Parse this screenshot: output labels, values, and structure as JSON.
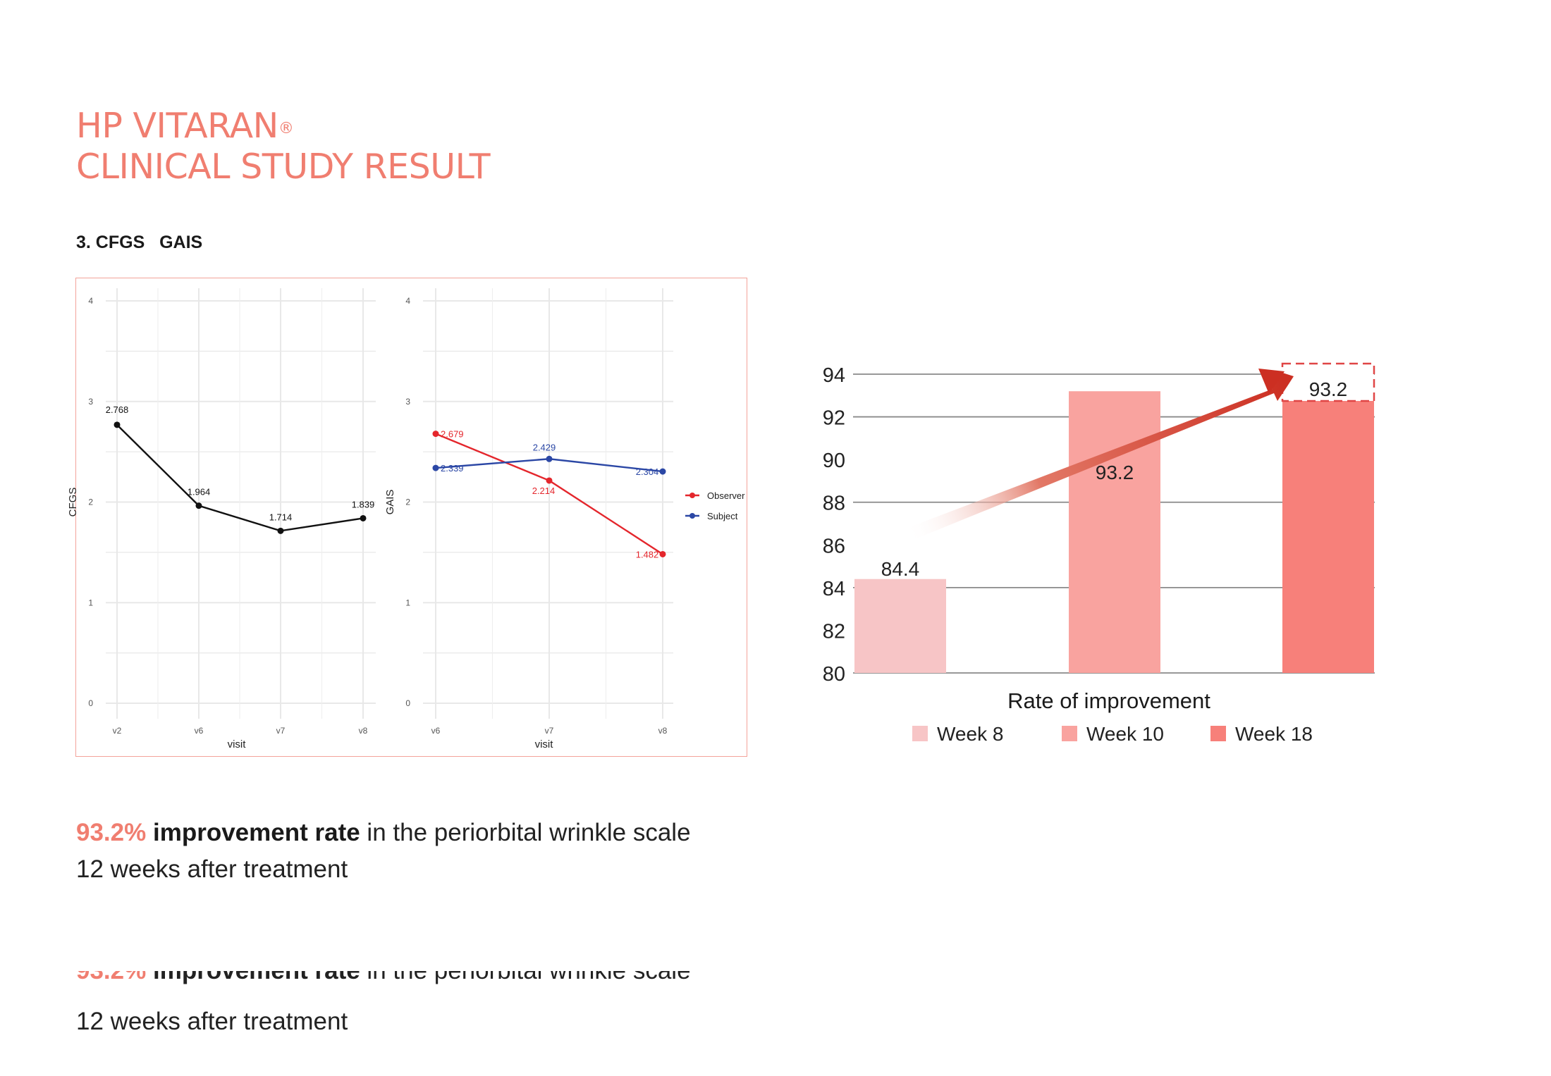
{
  "header": {
    "title_line1": "HP VITARAN",
    "title_reg": "®",
    "title_line2": "CLINICAL STUDY RESULT",
    "section": "3. CFGS   GAIS"
  },
  "statement": {
    "pct": "93.2%",
    "bold": "improvement rate",
    "rest": " in the periorbital wrinkle scale",
    "line2": "12 weeks after treatment"
  },
  "colors": {
    "brand": "#f07e70",
    "observer": "#e4262c",
    "subject": "#2b47a5",
    "week8": "#f7c5c6",
    "week10": "#f9a39f",
    "week18": "#f7807a"
  },
  "chart_data": [
    {
      "type": "line",
      "xlabel": "visit",
      "ylabel": "CFGS",
      "categories": [
        "v2",
        "v6",
        "v7",
        "v8"
      ],
      "ylim": [
        0,
        4
      ],
      "yticks": [
        "0",
        "1",
        "2",
        "3",
        "4"
      ],
      "grid": true,
      "series": [
        {
          "values": [
            2.768,
            1.964,
            1.714,
            1.839
          ],
          "labels": [
            "2.768",
            "1.964",
            "1.714",
            "1.839"
          ],
          "color": "#111111"
        }
      ]
    },
    {
      "type": "line",
      "xlabel": "visit",
      "ylabel": "GAIS",
      "categories": [
        "v6",
        "v7",
        "v8"
      ],
      "ylim": [
        0,
        4
      ],
      "yticks": [
        "0",
        "1",
        "2",
        "3",
        "4"
      ],
      "grid": true,
      "legend": "right",
      "series": [
        {
          "name": "Observer",
          "values": [
            2.679,
            2.214,
            1.482
          ],
          "labels": [
            "2.679",
            "2.214",
            "1.482"
          ],
          "color": "#e4262c"
        },
        {
          "name": "Subject",
          "values": [
            2.339,
            2.429,
            2.304
          ],
          "labels": [
            "2.339",
            "2.429",
            "2.304"
          ],
          "color": "#2b47a5"
        }
      ]
    },
    {
      "type": "bar",
      "xlabel": "Rate of improvement",
      "categories": [
        "Week 8",
        "Week 10",
        "Week 18"
      ],
      "values": [
        84.4,
        93.2,
        93.2
      ],
      "labels": [
        "84.4",
        "93.2",
        "93.2"
      ],
      "ylim": [
        80,
        94
      ],
      "yticks": [
        "80",
        "82",
        "84",
        "86",
        "88",
        "90",
        "92",
        "94"
      ],
      "legend": "bottom",
      "grid": true
    }
  ]
}
